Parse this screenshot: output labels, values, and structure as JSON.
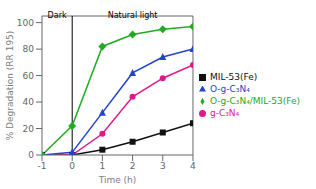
{
  "chart_data": {
    "type": "line",
    "x": [
      -1,
      0,
      1,
      2,
      3,
      4
    ],
    "series": [
      {
        "name": "MIL-53(Fe)",
        "color": "#111111",
        "marker": "square",
        "values": [
          0,
          0,
          4,
          10,
          17,
          24
        ]
      },
      {
        "name": "g-C₃N₄",
        "color": "#e0188c",
        "marker": "circle",
        "values": [
          0,
          0,
          16,
          44,
          58,
          68
        ]
      },
      {
        "name": "O-g-C₃N₄",
        "color": "#2244cc",
        "marker": "triangle",
        "values": [
          0,
          2,
          32,
          62,
          74,
          80
        ]
      },
      {
        "name": "O-g-C₃N₄/MIL-53(Fe)",
        "color": "#22aa22",
        "marker": "diamond",
        "values": [
          0,
          22,
          82,
          91,
          95,
          97
        ]
      }
    ],
    "x_label": "Time (h)",
    "y_label": "% Degradation (RR 195)",
    "xlim": [
      -1,
      4
    ],
    "xticks": [
      -1,
      0,
      1,
      2,
      3,
      4
    ],
    "ylim": [
      0,
      105
    ],
    "yticks": [
      0,
      20,
      40,
      60,
      80,
      100
    ],
    "grid": false,
    "legend": "right",
    "annotations": [
      {
        "type": "vline",
        "x": 0,
        "color": "#000000"
      },
      {
        "text": "Dark",
        "x": -0.5,
        "y": 102
      },
      {
        "text": "Natural light",
        "x": 2,
        "y": 102
      }
    ]
  }
}
